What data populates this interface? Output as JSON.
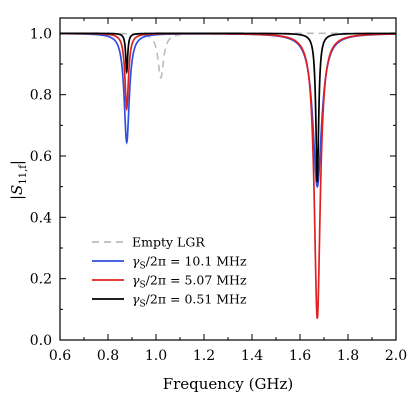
{
  "chart_data": {
    "type": "line",
    "xlabel": "Frequency (GHz)",
    "ylabel": "|S11,f|",
    "ylabel_main": "|S",
    "ylabel_sub": "11,f",
    "ylabel_close": "|",
    "xlim": [
      0.6,
      2.0
    ],
    "ylim": [
      0.0,
      1.05
    ],
    "xticks": [
      "0.6",
      "0.8",
      "1.0",
      "1.2",
      "1.4",
      "1.6",
      "1.8",
      "2.0"
    ],
    "yticks": [
      "0.0",
      "0.2",
      "0.4",
      "0.6",
      "0.8",
      "1.0"
    ],
    "grid": false,
    "legend_position": "bottom-left",
    "series": [
      {
        "name": "Empty LGR",
        "color": "#b8bcc0",
        "dash": true,
        "resonances": [
          {
            "f0_ghz": 1.02,
            "min": 0.855,
            "hwhm_ghz": 0.014
          }
        ]
      },
      {
        "name": "γS/2π = 10.1 MHz",
        "color": "#3050e0",
        "dash": false,
        "resonances": [
          {
            "f0_ghz": 0.878,
            "min": 0.645,
            "hwhm_ghz": 0.013
          },
          {
            "f0_ghz": 1.672,
            "min": 0.5,
            "hwhm_ghz": 0.022
          }
        ]
      },
      {
        "name": "γS/2π = 5.07 MHz",
        "color": "#e02020",
        "dash": false,
        "resonances": [
          {
            "f0_ghz": 0.878,
            "min": 0.755,
            "hwhm_ghz": 0.009
          },
          {
            "f0_ghz": 1.672,
            "min": 0.07,
            "hwhm_ghz": 0.015
          }
        ]
      },
      {
        "name": "γS/2π = 0.51 MHz",
        "color": "#000000",
        "dash": false,
        "resonances": [
          {
            "f0_ghz": 0.878,
            "min": 0.875,
            "hwhm_ghz": 0.005
          },
          {
            "f0_ghz": 1.672,
            "min": 0.515,
            "hwhm_ghz": 0.007
          }
        ]
      }
    ],
    "legend": [
      {
        "pre": "",
        "sub": "",
        "post": "Empty LGR"
      },
      {
        "pre": "γ",
        "sub": "S",
        "post": "/2π = 10.1 MHz"
      },
      {
        "pre": "γ",
        "sub": "S",
        "post": "/2π = 5.07 MHz"
      },
      {
        "pre": "γ",
        "sub": "S",
        "post": "/2π = 0.51 MHz"
      }
    ]
  }
}
